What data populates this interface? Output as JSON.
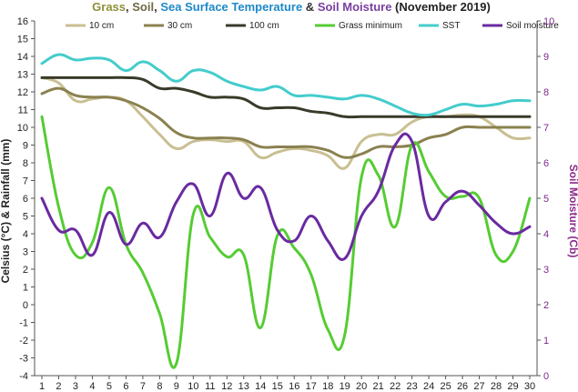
{
  "chart_data": {
    "type": "line",
    "title_parts": [
      {
        "text": "Grass",
        "color": "#8f8f3a"
      },
      {
        "text": ", ",
        "color": "#333333"
      },
      {
        "text": "Soil",
        "color": "#6e6a45"
      },
      {
        "text": ", ",
        "color": "#333333"
      },
      {
        "text": "Sea Surface Temperature",
        "color": "#1e88c8"
      },
      {
        "text": " & ",
        "color": "#333333"
      },
      {
        "text": "Soil Moisture",
        "color": "#7a3fa0"
      },
      {
        "text": " (November 2019)",
        "color": "#222222"
      }
    ],
    "ylabel_left": "Celsius (°C) & Rainfall (mm)",
    "ylabel_right": "Soil Moisture (Cb)",
    "ylabel_left_color": "#222222",
    "ylabel_right_color": "#8a2b8a",
    "x": [
      1,
      2,
      3,
      4,
      5,
      6,
      7,
      8,
      9,
      10,
      11,
      12,
      13,
      14,
      15,
      16,
      17,
      18,
      19,
      20,
      21,
      22,
      23,
      24,
      25,
      26,
      27,
      28,
      29,
      30
    ],
    "x_ticks": [
      "1",
      "2",
      "3",
      "4",
      "5",
      "6",
      "7",
      "8",
      "9",
      "10",
      "11",
      "12",
      "13",
      "14",
      "15",
      "16",
      "17",
      "18",
      "19",
      "20",
      "21",
      "22",
      "23",
      "24",
      "25",
      "26",
      "27",
      "28",
      "29",
      "30"
    ],
    "ylim_left": [
      -4,
      16
    ],
    "y_ticks_left": [
      "-4",
      "-3",
      "-2",
      "-1",
      "0",
      "1",
      "2",
      "3",
      "4",
      "5",
      "6",
      "7",
      "8",
      "9",
      "10",
      "11",
      "12",
      "13",
      "14",
      "15",
      "16"
    ],
    "ylim_right": [
      0,
      10
    ],
    "y_ticks_right": [
      "0",
      "1",
      "2",
      "3",
      "4",
      "5",
      "6",
      "7",
      "8",
      "9",
      "10"
    ],
    "grid": false,
    "legend_position": "top",
    "series": [
      {
        "name": "10 cm",
        "axis": "left",
        "color": "#c9bf92",
        "values": [
          12.8,
          12.5,
          11.5,
          11.6,
          11.7,
          11.5,
          10.6,
          9.6,
          8.8,
          9.2,
          9.3,
          9.2,
          9.2,
          8.3,
          8.6,
          8.8,
          8.7,
          8.4,
          7.7,
          9.2,
          9.6,
          9.6,
          10.3,
          10.6,
          10.6,
          10.7,
          10.6,
          10.0,
          9.4,
          9.4
        ]
      },
      {
        "name": "30 cm",
        "axis": "left",
        "color": "#8a8150",
        "values": [
          11.9,
          12.2,
          11.8,
          11.7,
          11.7,
          11.5,
          11.1,
          10.5,
          9.7,
          9.4,
          9.4,
          9.4,
          9.3,
          8.9,
          8.9,
          8.9,
          8.9,
          8.7,
          8.3,
          8.5,
          8.9,
          8.9,
          9.0,
          9.4,
          9.6,
          10.0,
          10.0,
          10.0,
          10.0,
          10.0
        ]
      },
      {
        "name": "100 cm",
        "axis": "left",
        "color": "#3a3a2a",
        "values": [
          12.8,
          12.8,
          12.8,
          12.8,
          12.8,
          12.8,
          12.7,
          12.2,
          12.2,
          12.0,
          11.7,
          11.7,
          11.6,
          11.1,
          11.1,
          11.1,
          10.9,
          10.8,
          10.6,
          10.6,
          10.6,
          10.6,
          10.6,
          10.6,
          10.6,
          10.6,
          10.6,
          10.6,
          10.6,
          10.6
        ]
      },
      {
        "name": "Grass minimum",
        "axis": "left",
        "color": "#55cc33",
        "values": [
          10.6,
          5.5,
          2.8,
          3.5,
          6.6,
          3.4,
          1.8,
          -0.5,
          -3.3,
          5.1,
          3.8,
          2.7,
          2.8,
          -1.3,
          3.9,
          3.2,
          1.7,
          -1.4,
          -1.7,
          7.2,
          7.3,
          4.4,
          9.0,
          7.5,
          6.1,
          6.1,
          6.0,
          2.8,
          3.0,
          6.0
        ]
      },
      {
        "name": "SST",
        "axis": "left",
        "color": "#44cccc",
        "values": [
          13.6,
          14.1,
          13.8,
          13.9,
          13.8,
          13.2,
          13.7,
          13.2,
          12.6,
          13.2,
          13.1,
          12.6,
          12.3,
          12.1,
          12.3,
          11.8,
          11.8,
          11.7,
          11.6,
          11.8,
          11.6,
          11.2,
          10.8,
          10.7,
          11.0,
          11.3,
          11.2,
          11.3,
          11.5,
          11.5
        ]
      },
      {
        "name": "Soil moisture",
        "axis": "right",
        "color": "#6a2aa0",
        "values": [
          5.0,
          4.1,
          4.1,
          3.4,
          4.6,
          3.7,
          4.3,
          3.9,
          4.9,
          5.4,
          4.5,
          5.7,
          5.0,
          5.3,
          4.1,
          3.8,
          4.5,
          3.8,
          3.3,
          4.5,
          5.2,
          6.5,
          6.6,
          4.5,
          4.9,
          5.2,
          4.8,
          4.3,
          4.0,
          4.2
        ]
      }
    ]
  }
}
